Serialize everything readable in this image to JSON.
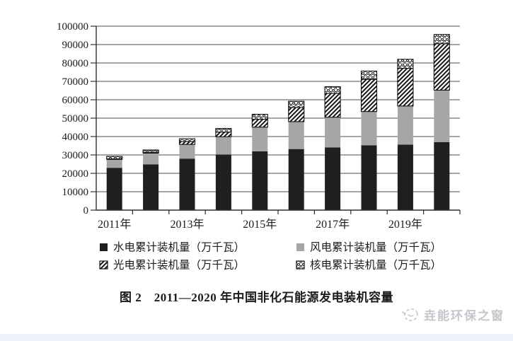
{
  "chart_data": {
    "type": "bar",
    "stacked": true,
    "categories": [
      "2011",
      "2012",
      "2013",
      "2014",
      "2015",
      "2016",
      "2017",
      "2018",
      "2019",
      "2020"
    ],
    "x_tick_labels": [
      "2011年",
      "2013年",
      "2015年",
      "2017年",
      "2019年"
    ],
    "x_tick_label_indices": [
      0,
      2,
      4,
      6,
      8
    ],
    "series": [
      {
        "name": "水电累计装机量（万千瓦）",
        "swatch": "solid-black",
        "values": [
          23000,
          24900,
          28000,
          30200,
          32000,
          33200,
          34100,
          35200,
          35600,
          37000
        ]
      },
      {
        "name": "风电累计装机量（万千瓦）",
        "swatch": "solid-gray",
        "values": [
          4600,
          6100,
          7700,
          9700,
          13100,
          14900,
          16400,
          18400,
          21000,
          28200
        ]
      },
      {
        "name": "光电累计装机量（万千瓦）",
        "swatch": "diagonal-hatch",
        "values": [
          300,
          400,
          1600,
          2500,
          4300,
          7700,
          13000,
          17500,
          20500,
          25300
        ]
      },
      {
        "name": "核电累计装机量（万千瓦）",
        "swatch": "dot-grid",
        "values": [
          1300,
          1300,
          1500,
          2000,
          2700,
          3400,
          3600,
          4500,
          4900,
          5000
        ]
      }
    ],
    "ylim": [
      0,
      100000
    ],
    "y_tick_step": 10000,
    "y_ticks": [
      0,
      10000,
      20000,
      30000,
      40000,
      50000,
      60000,
      70000,
      80000,
      90000,
      100000
    ],
    "grid": true,
    "legend_position": "bottom",
    "unit": "万千瓦"
  },
  "colors": {
    "bar_black": "#1f1f1f",
    "bar_gray": "#a6a6a6",
    "pattern_ink": "#141414",
    "grid_line": "#4d4d4d",
    "axis_line": "#2e2e2e",
    "text": "#1b1b1b",
    "watermark": "#c3c7cc",
    "bottom_strip": "#edf1fb"
  },
  "caption": {
    "text": "图 2　2011—2020 年中国非化石能源发电装机容量"
  },
  "watermark": {
    "text": "垚能环保之窗"
  }
}
